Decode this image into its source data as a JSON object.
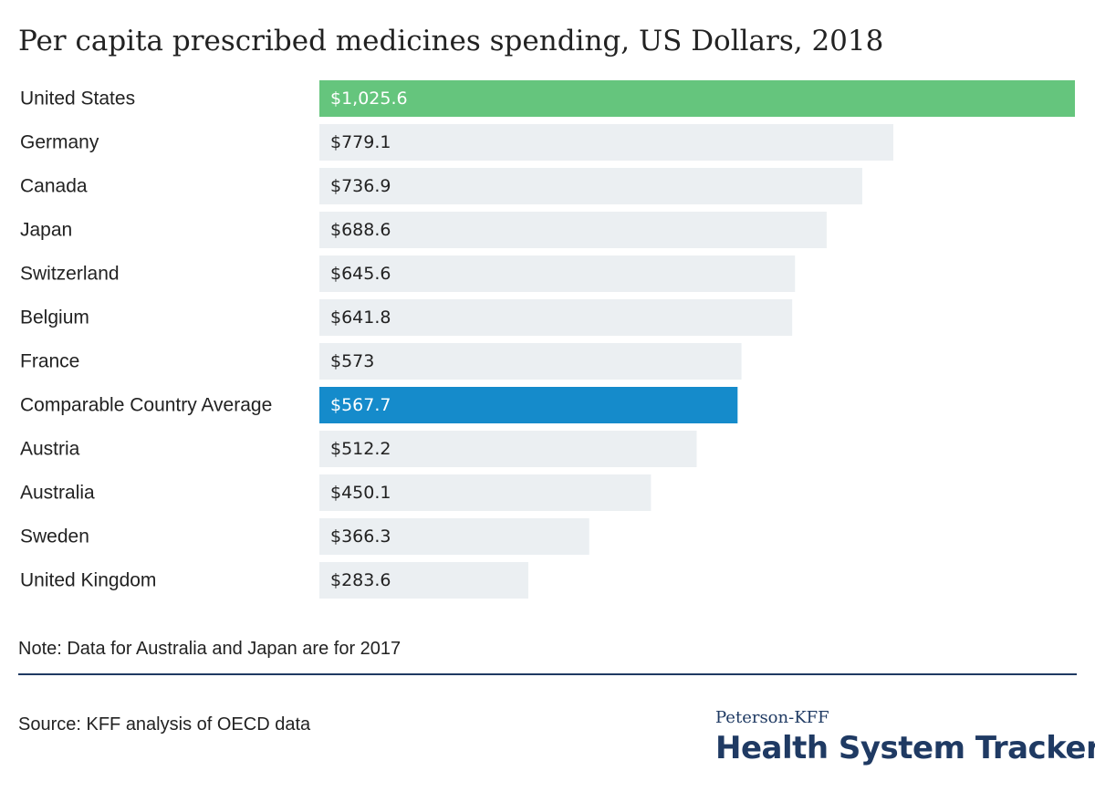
{
  "chart_data": {
    "type": "bar",
    "orientation": "horizontal",
    "title": "Per capita prescribed medicines spending, US Dollars, 2018",
    "categories": [
      "United States",
      "Germany",
      "Canada",
      "Japan",
      "Switzerland",
      "Belgium",
      "France",
      "Comparable Country Average",
      "Austria",
      "Australia",
      "Sweden",
      "United Kingdom"
    ],
    "values": [
      1025.6,
      779.1,
      736.9,
      688.6,
      645.6,
      641.8,
      573,
      567.7,
      512.2,
      450.1,
      366.3,
      283.6
    ],
    "value_labels": [
      "$1,025.6",
      "$779.1",
      "$736.9",
      "$688.6",
      "$645.6",
      "$641.8",
      "$573",
      "$567.7",
      "$512.2",
      "$450.1",
      "$366.3",
      "$283.6"
    ],
    "xlim": [
      0,
      1025.6
    ],
    "grid": false,
    "legend": "none",
    "colors": {
      "United States": "#65c57d",
      "Comparable Country Average": "#158bcb",
      "default": "#ebeff2",
      "track": "#ebeff2"
    },
    "label_colors": {
      "highlighted": "#ffffff",
      "default": "#222222"
    }
  },
  "note": "Note: Data for Australia and Japan are for 2017",
  "source": "Source: KFF analysis of OECD data",
  "logo": {
    "top": "Peterson-KFF",
    "main": "Health System Tracker"
  }
}
